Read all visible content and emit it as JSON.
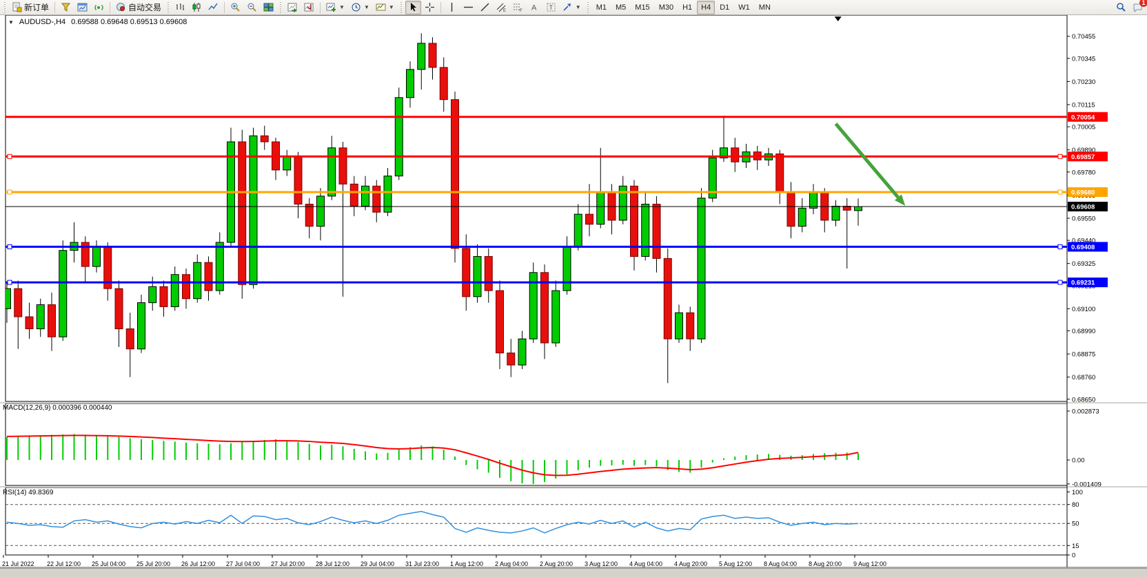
{
  "toolbar": {
    "new_order_label": "新订单",
    "auto_trading_label": "自动交易",
    "timeframes": [
      "M1",
      "M5",
      "M15",
      "M30",
      "H1",
      "H4",
      "D1",
      "W1",
      "MN"
    ],
    "active_timeframe": "H4",
    "notification_count": "1",
    "icons": [
      "new-order-icon",
      "funnel-icon",
      "chart-window-icon",
      "signal-icon",
      "autotrade-icon",
      "bar-chart-icon",
      "candlestick-icon",
      "line-chart-icon",
      "zoom-in-icon",
      "zoom-out-icon",
      "tile-windows-icon",
      "shift-chart-icon",
      "shift-end-icon",
      "add-indicator-icon",
      "clock-icon",
      "template-icon",
      "cursor-icon",
      "crosshair-icon",
      "vertical-line-icon",
      "horizontal-line-icon",
      "trendline-icon",
      "channel-icon",
      "fibonacci-icon",
      "text-icon",
      "label-icon",
      "shapes-icon",
      "search-icon",
      "chat-icon"
    ]
  },
  "chart": {
    "symbol": "AUDUSD-,H4",
    "quote": "0.69588 0.69648 0.69513 0.69608"
  },
  "chart_data": {
    "type": "candlestick",
    "symbol": "AUDUSD",
    "timeframe": "H4",
    "last_quote": {
      "open": 0.69588,
      "high": 0.69648,
      "low": 0.69513,
      "close": 0.69608
    },
    "ylim": [
      0.68639,
      0.7056
    ],
    "grid": false,
    "up_color": "#00cc00",
    "down_color": "#e8100c",
    "price_axis_ticks": [
      "0.70455",
      "0.70345",
      "0.70230",
      "0.70115",
      "0.70005",
      "0.69890",
      "0.69780",
      "0.69665",
      "0.69550",
      "0.69440",
      "0.69325",
      "0.69215",
      "0.69100",
      "0.68990",
      "0.68875",
      "0.68760",
      "0.68650"
    ],
    "x_labels": [
      "21 Jul 2022",
      "22 Jul 12:00",
      "25 Jul 04:00",
      "25 Jul 20:00",
      "26 Jul 12:00",
      "27 Jul 04:00",
      "27 Jul 20:00",
      "28 Jul 12:00",
      "29 Jul 04:00",
      "31 Jul 23:00",
      "1 Aug 12:00",
      "2 Aug 04:00",
      "2 Aug 20:00",
      "3 Aug 12:00",
      "4 Aug 04:00",
      "4 Aug 20:00",
      "5 Aug 12:00",
      "8 Aug 04:00",
      "8 Aug 20:00",
      "9 Aug 12:00"
    ],
    "candles": [
      [
        0.691,
        0.6923,
        0.6903,
        0.692
      ],
      [
        0.692,
        0.6924,
        0.689,
        0.6906
      ],
      [
        0.6906,
        0.6913,
        0.6895,
        0.69
      ],
      [
        0.69,
        0.6915,
        0.6896,
        0.6912
      ],
      [
        0.6912,
        0.6918,
        0.6889,
        0.6896
      ],
      [
        0.6896,
        0.6944,
        0.6894,
        0.6939
      ],
      [
        0.6939,
        0.6953,
        0.6933,
        0.6943
      ],
      [
        0.6943,
        0.6946,
        0.6923,
        0.6931
      ],
      [
        0.6931,
        0.6944,
        0.6928,
        0.6941
      ],
      [
        0.6941,
        0.6943,
        0.6914,
        0.692
      ],
      [
        0.692,
        0.6924,
        0.6891,
        0.69
      ],
      [
        0.69,
        0.6908,
        0.6876,
        0.689
      ],
      [
        0.689,
        0.6917,
        0.6888,
        0.6913
      ],
      [
        0.6913,
        0.6926,
        0.6909,
        0.6921
      ],
      [
        0.6921,
        0.6924,
        0.6906,
        0.6911
      ],
      [
        0.6911,
        0.6931,
        0.6909,
        0.6927
      ],
      [
        0.6927,
        0.693,
        0.691,
        0.6915
      ],
      [
        0.6915,
        0.6937,
        0.6913,
        0.6933
      ],
      [
        0.6933,
        0.6936,
        0.6914,
        0.6919
      ],
      [
        0.6919,
        0.6948,
        0.6917,
        0.6943
      ],
      [
        0.6943,
        0.7,
        0.6941,
        0.6993
      ],
      [
        0.6993,
        0.6999,
        0.6915,
        0.6922
      ],
      [
        0.6922,
        0.7,
        0.692,
        0.6996
      ],
      [
        0.6996,
        0.7001,
        0.6989,
        0.6993
      ],
      [
        0.6993,
        0.6995,
        0.6974,
        0.6979
      ],
      [
        0.6979,
        0.6989,
        0.6976,
        0.6986
      ],
      [
        0.6986,
        0.6988,
        0.6955,
        0.6962
      ],
      [
        0.6962,
        0.6965,
        0.6945,
        0.6951
      ],
      [
        0.6951,
        0.697,
        0.6944,
        0.6966
      ],
      [
        0.6966,
        0.6996,
        0.6964,
        0.699
      ],
      [
        0.699,
        0.6993,
        0.6916,
        0.6972
      ],
      [
        0.6972,
        0.6976,
        0.6956,
        0.6961
      ],
      [
        0.6961,
        0.6976,
        0.6959,
        0.6971
      ],
      [
        0.6971,
        0.6974,
        0.6953,
        0.6958
      ],
      [
        0.6958,
        0.698,
        0.6956,
        0.6976
      ],
      [
        0.6976,
        0.702,
        0.6974,
        0.7015
      ],
      [
        0.7015,
        0.7033,
        0.701,
        0.7029
      ],
      [
        0.7029,
        0.7047,
        0.7019,
        0.7042
      ],
      [
        0.7042,
        0.7045,
        0.7024,
        0.703
      ],
      [
        0.703,
        0.7035,
        0.7008,
        0.7014
      ],
      [
        0.7014,
        0.7018,
        0.6933,
        0.694
      ],
      [
        0.694,
        0.6947,
        0.6909,
        0.6916
      ],
      [
        0.6916,
        0.6942,
        0.6913,
        0.6936
      ],
      [
        0.6936,
        0.694,
        0.6913,
        0.6919
      ],
      [
        0.6919,
        0.6924,
        0.688,
        0.6888
      ],
      [
        0.6888,
        0.6895,
        0.6876,
        0.6882
      ],
      [
        0.6882,
        0.6899,
        0.688,
        0.6895
      ],
      [
        0.6895,
        0.6933,
        0.6893,
        0.6928
      ],
      [
        0.6928,
        0.6932,
        0.6885,
        0.6893
      ],
      [
        0.6893,
        0.6924,
        0.6891,
        0.6919
      ],
      [
        0.6919,
        0.6946,
        0.6917,
        0.6941
      ],
      [
        0.6941,
        0.6962,
        0.6939,
        0.6957
      ],
      [
        0.6957,
        0.6972,
        0.6946,
        0.6952
      ],
      [
        0.6952,
        0.699,
        0.695,
        0.6968
      ],
      [
        0.6968,
        0.6972,
        0.6947,
        0.6954
      ],
      [
        0.6954,
        0.6976,
        0.6952,
        0.6971
      ],
      [
        0.6971,
        0.6974,
        0.6929,
        0.6936
      ],
      [
        0.6936,
        0.6968,
        0.6934,
        0.6962
      ],
      [
        0.6962,
        0.6966,
        0.6928,
        0.6935
      ],
      [
        0.6935,
        0.694,
        0.6873,
        0.6895
      ],
      [
        0.6895,
        0.6912,
        0.6893,
        0.6908
      ],
      [
        0.6908,
        0.6911,
        0.6889,
        0.6895
      ],
      [
        0.6895,
        0.697,
        0.6893,
        0.6965
      ],
      [
        0.6965,
        0.6989,
        0.6963,
        0.6985
      ],
      [
        0.6985,
        0.7006,
        0.6983,
        0.699
      ],
      [
        0.699,
        0.6995,
        0.6978,
        0.6983
      ],
      [
        0.6983,
        0.6992,
        0.698,
        0.6988
      ],
      [
        0.6988,
        0.6991,
        0.6979,
        0.6984
      ],
      [
        0.6984,
        0.699,
        0.6981,
        0.6987
      ],
      [
        0.6987,
        0.6989,
        0.6962,
        0.6968
      ],
      [
        0.6968,
        0.6973,
        0.6945,
        0.6951
      ],
      [
        0.6951,
        0.6965,
        0.6948,
        0.696
      ],
      [
        0.696,
        0.6972,
        0.6957,
        0.6968
      ],
      [
        0.6968,
        0.697,
        0.6948,
        0.6954
      ],
      [
        0.6954,
        0.6964,
        0.6951,
        0.6961
      ],
      [
        0.6961,
        0.6965,
        0.693,
        0.6959
      ],
      [
        0.69588,
        0.69648,
        0.69513,
        0.69608
      ]
    ],
    "horizontal_lines": [
      {
        "price": 0.70054,
        "label": "0.70054",
        "color": "#ff0000",
        "width": 3,
        "handles": false
      },
      {
        "price": 0.69857,
        "label": "0.69857",
        "color": "#ff0000",
        "width": 3,
        "handles": true
      },
      {
        "price": 0.6968,
        "label": "0.69680",
        "color": "#ffa500",
        "width": 3,
        "handles": true
      },
      {
        "price": 0.69608,
        "label": "0.69608",
        "color": "#000000",
        "width": 1,
        "handles": false
      },
      {
        "price": 0.69408,
        "label": "0.69408",
        "color": "#0000ff",
        "width": 3,
        "handles": true
      },
      {
        "price": 0.69231,
        "label": "0.69231",
        "color": "#0000ff",
        "width": 3,
        "handles": true
      }
    ],
    "trend_arrow": {
      "x1_index": 74.0,
      "price1": 0.7002,
      "x2_index": 80.2,
      "price2": 0.69612,
      "color": "#45a33b"
    },
    "shift_marker_index": 74.2,
    "macd": {
      "label": "MACD(12,26,9)",
      "values_text": "0.000396 0.000440",
      "main_value": 0.000396,
      "signal_value": 0.00044,
      "hist_color": "#00cc00",
      "signal_color": "#ff0000",
      "ticks": [
        {
          "v": 0.002873,
          "label": "0.002873"
        },
        {
          "v": 0,
          "label": "0.00"
        },
        {
          "v": -0.001409,
          "label": "-0.001409"
        }
      ],
      "histogram": [
        0.00135,
        0.00138,
        0.00142,
        0.00145,
        0.00148,
        0.0015,
        0.00152,
        0.00148,
        0.00145,
        0.0014,
        0.00135,
        0.00128,
        0.00122,
        0.00118,
        0.00112,
        0.00108,
        0.00102,
        0.00098,
        0.00095,
        0.00092,
        0.00098,
        0.00105,
        0.00112,
        0.00118,
        0.00122,
        0.00115,
        0.00105,
        0.00095,
        0.00085,
        0.0009,
        0.0008,
        0.00065,
        0.0005,
        0.00038,
        0.00042,
        0.0006,
        0.00075,
        0.00085,
        0.0008,
        0.0006,
        0.0002,
        -0.0003,
        -0.00055,
        -0.00075,
        -0.00105,
        -0.00125,
        -0.00138,
        -0.00141,
        -0.0013,
        -0.0011,
        -0.00085,
        -0.0006,
        -0.00045,
        -0.00035,
        -0.00032,
        -0.00028,
        -0.00035,
        -0.0003,
        -0.00038,
        -0.0006,
        -0.0007,
        -0.00075,
        -0.00045,
        -0.00015,
        0.0001,
        0.0002,
        0.00028,
        0.00032,
        0.00035,
        0.0003,
        0.00025,
        0.00028,
        0.00035,
        0.0004,
        0.00042,
        0.00043,
        0.000396
      ],
      "signal": [
        0.00138,
        0.00139,
        0.0014,
        0.00141,
        0.00142,
        0.00143,
        0.00144,
        0.00144,
        0.00143,
        0.00142,
        0.0014,
        0.00138,
        0.00135,
        0.00132,
        0.00128,
        0.00125,
        0.00121,
        0.00118,
        0.00114,
        0.00111,
        0.00109,
        0.00108,
        0.00109,
        0.00111,
        0.00113,
        0.00113,
        0.00112,
        0.00109,
        0.00104,
        0.00101,
        0.00097,
        0.0009,
        0.00082,
        0.00073,
        0.00067,
        0.00065,
        0.00067,
        0.00071,
        0.00073,
        0.0007,
        0.0006,
        0.00042,
        0.00023,
        3e-05,
        -0.00019,
        -0.0004,
        -0.0006,
        -0.00076,
        -0.00087,
        -0.00091,
        -0.0009,
        -0.00084,
        -0.00076,
        -0.00068,
        -0.00061,
        -0.00054,
        -0.0005,
        -0.00047,
        -0.00045,
        -0.00048,
        -0.00052,
        -0.00057,
        -0.00054,
        -0.00046,
        -0.00035,
        -0.00024,
        -0.00013,
        -4e-05,
        4e-05,
        9e-05,
        0.00012,
        0.00015,
        0.00019,
        0.00023,
        0.00027,
        0.00031,
        0.00044
      ]
    },
    "rsi": {
      "label": "RSI(14)",
      "value_text": "49.8369",
      "value": 49.8369,
      "line_color": "#2f8fe0",
      "ticks": [
        {
          "v": 100,
          "label": "100"
        },
        {
          "v": 80,
          "label": "80"
        },
        {
          "v": 50,
          "label": "50"
        },
        {
          "v": 15,
          "label": "15"
        },
        {
          "v": 0,
          "label": "0"
        }
      ],
      "levels": [
        80,
        50,
        15
      ],
      "series": [
        52,
        50,
        47,
        48,
        45,
        44,
        54,
        56,
        52,
        54,
        49,
        45,
        43,
        50,
        52,
        49,
        53,
        50,
        55,
        51,
        63,
        50,
        62,
        61,
        56,
        58,
        51,
        48,
        53,
        60,
        55,
        51,
        54,
        50,
        55,
        63,
        66,
        69,
        64,
        60,
        42,
        36,
        43,
        39,
        36,
        35,
        38,
        43,
        35,
        42,
        48,
        52,
        49,
        55,
        50,
        54,
        44,
        52,
        43,
        38,
        42,
        40,
        57,
        61,
        63,
        58,
        60,
        58,
        59,
        52,
        47,
        50,
        52,
        48,
        50,
        49,
        49.8369
      ]
    }
  }
}
